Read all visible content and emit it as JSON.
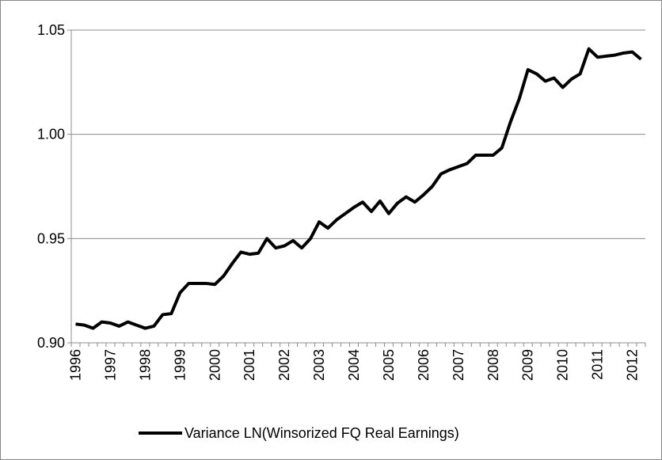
{
  "chart_data": {
    "type": "line",
    "categories": [
      "1996",
      null,
      null,
      null,
      "1997",
      null,
      null,
      null,
      "1998",
      null,
      null,
      null,
      "1999",
      null,
      null,
      null,
      "2000",
      null,
      null,
      null,
      "2001",
      null,
      null,
      null,
      "2002",
      null,
      null,
      null,
      "2003",
      null,
      null,
      null,
      "2004",
      null,
      null,
      null,
      "2005",
      null,
      null,
      null,
      "2006",
      null,
      null,
      null,
      "2007",
      null,
      null,
      null,
      "2008",
      null,
      null,
      null,
      "2009",
      null,
      null,
      null,
      "2010",
      null,
      null,
      null,
      "2011",
      null,
      null,
      null,
      "2012",
      null
    ],
    "series": [
      {
        "name": "Variance LN(Winsorized FQ Real Earnings)",
        "color": "#000000",
        "values": [
          0.909,
          0.9085,
          0.907,
          0.91,
          0.9095,
          0.908,
          0.91,
          0.9085,
          0.907,
          0.908,
          0.9135,
          0.914,
          0.924,
          0.9285,
          0.9285,
          0.9285,
          0.928,
          0.932,
          0.938,
          0.9435,
          0.9425,
          0.943,
          0.95,
          0.9455,
          0.9465,
          0.949,
          0.9455,
          0.95,
          0.958,
          0.955,
          0.959,
          0.962,
          0.965,
          0.9675,
          0.963,
          0.968,
          0.962,
          0.967,
          0.97,
          0.9675,
          0.971,
          0.975,
          0.981,
          0.983,
          0.9845,
          0.986,
          0.99,
          0.99,
          0.99,
          0.9935,
          1.006,
          1.017,
          1.031,
          1.029,
          1.0255,
          1.027,
          1.0225,
          1.0265,
          1.029,
          1.041,
          1.037,
          1.0375,
          1.038,
          1.039,
          1.0395,
          1.036
        ]
      }
    ],
    "ylim": [
      0.9,
      1.05
    ],
    "yticks": [
      {
        "value": 0.9,
        "label": "0.90"
      },
      0.95,
      {
        "value": 1,
        "label": "1.00"
      },
      1.05
    ],
    "grid": true,
    "legend": "bottom"
  }
}
